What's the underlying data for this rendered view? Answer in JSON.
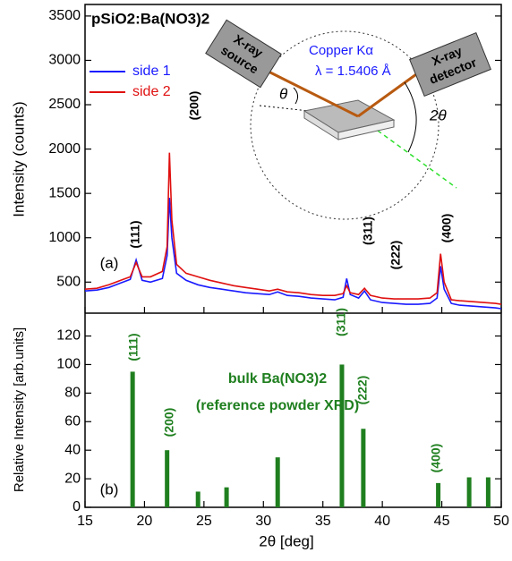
{
  "chart_data": [
    {
      "type": "line",
      "title": "pSiO2:Ba(NO3)2",
      "y_label": "Intensity (counts)",
      "xlim": [
        15,
        50
      ],
      "xticks": [
        15,
        20,
        25,
        30,
        35,
        40,
        45,
        50
      ],
      "ylim": [
        150,
        3630
      ],
      "yticks": [
        500,
        1000,
        1500,
        2000,
        2500,
        3000,
        3500
      ],
      "x": [
        15,
        16,
        17,
        18,
        18.8,
        19.3,
        19.8,
        20.5,
        21.5,
        21.9,
        22.1,
        22.3,
        22.7,
        23.5,
        24.5,
        25.5,
        26.5,
        27.5,
        28.5,
        29.5,
        30.5,
        31.2,
        32,
        33,
        34,
        35,
        36,
        36.7,
        37.0,
        37.3,
        38.0,
        38.5,
        39.0,
        40,
        41,
        42,
        43,
        44,
        44.6,
        44.9,
        45.2,
        45.8,
        46.5,
        47.5,
        48.5,
        49.5,
        50
      ],
      "series": [
        {
          "name": "side 1",
          "color": "#1a1aff",
          "values": [
            400,
            410,
            440,
            490,
            530,
            750,
            520,
            500,
            540,
            800,
            1450,
            1000,
            600,
            520,
            470,
            440,
            420,
            400,
            380,
            370,
            360,
            390,
            350,
            340,
            320,
            310,
            300,
            330,
            540,
            360,
            320,
            400,
            300,
            270,
            260,
            250,
            250,
            260,
            320,
            680,
            420,
            260,
            240,
            230,
            220,
            210,
            200
          ]
        },
        {
          "name": "side 2",
          "color": "#e01010",
          "values": [
            420,
            430,
            470,
            520,
            560,
            720,
            560,
            560,
            620,
            900,
            1960,
            1200,
            700,
            600,
            560,
            520,
            490,
            460,
            440,
            420,
            400,
            420,
            390,
            380,
            360,
            350,
            350,
            370,
            460,
            380,
            360,
            430,
            350,
            320,
            310,
            310,
            310,
            320,
            380,
            820,
            500,
            300,
            290,
            280,
            270,
            260,
            250
          ]
        }
      ],
      "annotations": [
        "(111)",
        "(200)",
        "(311)",
        "(222)",
        "(400)",
        "(a)"
      ],
      "inset": {
        "source": [
          "X-ray",
          "source"
        ],
        "detector": [
          "X-ray",
          "detector"
        ],
        "target": "Copper Kα",
        "wavelength": "λ = 1.5406 Å",
        "angle": "θ",
        "double_angle": "2θ"
      }
    },
    {
      "type": "bar",
      "x_label": "2θ [deg]",
      "y_label": "Relative Intensity [arb.units]",
      "xlim": [
        15,
        50
      ],
      "xticks": [
        15,
        20,
        25,
        30,
        35,
        40,
        45,
        50
      ],
      "ylim": [
        0,
        136
      ],
      "yticks": [
        0,
        20,
        40,
        60,
        80,
        100,
        120
      ],
      "color": "#1f7f1f",
      "x": [
        19,
        21.9,
        24.5,
        26.9,
        31.2,
        36.6,
        38.4,
        44.7,
        47.3,
        48.9
      ],
      "values": [
        95,
        40,
        11,
        14,
        35,
        100,
        55,
        17,
        21,
        21
      ],
      "annotations": [
        "(111)",
        "(200)",
        "(311)",
        "(222)",
        "(400)",
        "bulk Ba(NO3)2",
        "(reference powder XRD)",
        "(b)"
      ]
    }
  ]
}
